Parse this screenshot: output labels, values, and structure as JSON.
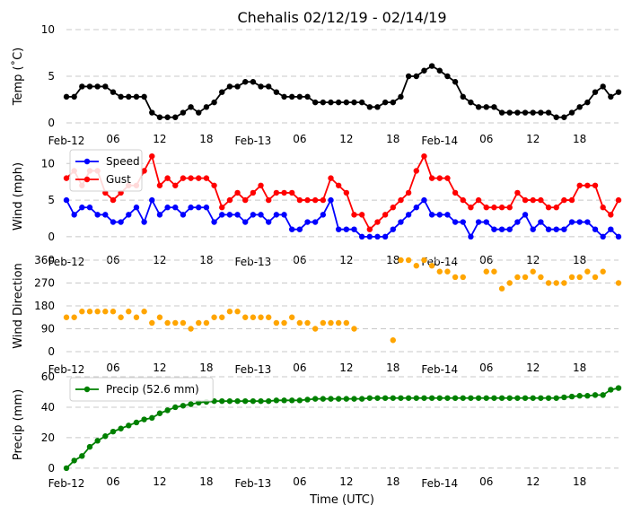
{
  "title": "Chehalis 02/12/19 - 02/14/19",
  "time_axis": {
    "xlabel": "Time (UTC)",
    "tick_labels": [
      "Feb-12",
      "06",
      "12",
      "18",
      "Feb-13",
      "06",
      "12",
      "18",
      "Feb-14",
      "06",
      "12",
      "18"
    ],
    "tick_hours": [
      0,
      6,
      12,
      18,
      24,
      30,
      36,
      42,
      48,
      54,
      60,
      66
    ],
    "xlim": [
      0,
      71
    ]
  },
  "colors": {
    "temp": "#000000",
    "speed": "#0000ff",
    "gust": "#ff0000",
    "direction": "#ffa500",
    "precip": "#008000"
  },
  "chart_data": [
    {
      "type": "line",
      "ylabel": "Temp (˚C)",
      "ylim": [
        0,
        10
      ],
      "yticks": [
        0,
        5,
        10
      ],
      "grid": true,
      "x": [
        0,
        1,
        2,
        3,
        4,
        5,
        6,
        7,
        8,
        9,
        10,
        11,
        12,
        13,
        14,
        15,
        16,
        17,
        18,
        19,
        20,
        21,
        22,
        23,
        24,
        25,
        26,
        27,
        28,
        29,
        30,
        31,
        32,
        33,
        34,
        35,
        36,
        37,
        38,
        39,
        40,
        41,
        42,
        43,
        44,
        45,
        46,
        47,
        48,
        49,
        50,
        51,
        52,
        53,
        54,
        55,
        56,
        57,
        58,
        59,
        60,
        61,
        62,
        63,
        64,
        65,
        66,
        67,
        68,
        69,
        70,
        71
      ],
      "series": [
        {
          "values": [
            2.8,
            2.8,
            3.9,
            3.9,
            3.9,
            3.9,
            3.3,
            2.8,
            2.8,
            2.8,
            2.8,
            1.1,
            0.6,
            0.6,
            0.6,
            1.1,
            1.7,
            1.1,
            1.7,
            2.2,
            3.3,
            3.9,
            3.9,
            4.4,
            4.4,
            3.9,
            3.9,
            3.3,
            2.8,
            2.8,
            2.8,
            2.8,
            2.2,
            2.2,
            2.2,
            2.2,
            2.2,
            2.2,
            2.2,
            1.7,
            1.7,
            2.2,
            2.2,
            2.8,
            5.0,
            5.0,
            5.6,
            6.1,
            5.6,
            5.0,
            4.4,
            2.8,
            2.2,
            1.7,
            1.7,
            1.7,
            1.1,
            1.1,
            1.1,
            1.1,
            1.1,
            1.1,
            1.1,
            0.6,
            0.6,
            1.1,
            1.7,
            2.2,
            3.3,
            3.9,
            2.8,
            3.3
          ]
        }
      ]
    },
    {
      "type": "line",
      "ylabel": "Wind (mph)",
      "ylim": [
        -1,
        12
      ],
      "yticks": [
        0,
        5,
        10
      ],
      "grid": true,
      "legend": "top-left",
      "x": [
        0,
        1,
        2,
        3,
        4,
        5,
        6,
        7,
        8,
        9,
        10,
        11,
        12,
        13,
        14,
        15,
        16,
        17,
        18,
        19,
        20,
        21,
        22,
        23,
        24,
        25,
        26,
        27,
        28,
        29,
        30,
        31,
        32,
        33,
        34,
        35,
        36,
        37,
        38,
        39,
        40,
        41,
        42,
        43,
        44,
        45,
        46,
        47,
        48,
        49,
        50,
        51,
        52,
        53,
        54,
        55,
        56,
        57,
        58,
        59,
        60,
        61,
        62,
        63,
        64,
        65,
        66,
        67,
        68,
        69,
        70,
        71
      ],
      "series": [
        {
          "name": "Speed",
          "values": [
            5,
            3,
            4,
            4,
            3,
            3,
            2,
            2,
            3,
            4,
            2,
            5,
            3,
            4,
            4,
            3,
            4,
            4,
            4,
            2,
            3,
            3,
            3,
            2,
            3,
            3,
            2,
            3,
            3,
            1,
            1,
            2,
            2,
            3,
            5,
            1,
            1,
            1,
            0,
            0,
            0,
            0,
            1,
            2,
            3,
            4,
            5,
            3,
            3,
            3,
            2,
            2,
            0,
            2,
            2,
            1,
            1,
            1,
            2,
            3,
            1,
            2,
            1,
            1,
            1,
            2,
            2,
            2,
            1,
            0,
            1,
            0
          ]
        },
        {
          "name": "Gust",
          "values": [
            8,
            9,
            7,
            9,
            9,
            6,
            5,
            6,
            7,
            7,
            9,
            11,
            7,
            8,
            7,
            8,
            8,
            8,
            8,
            7,
            4,
            5,
            6,
            5,
            6,
            7,
            5,
            6,
            6,
            6,
            5,
            5,
            5,
            5,
            8,
            7,
            6,
            3,
            3,
            1,
            2,
            3,
            4,
            5,
            6,
            9,
            11,
            8,
            8,
            8,
            6,
            5,
            4,
            5,
            4,
            4,
            4,
            4,
            6,
            5,
            5,
            5,
            4,
            4,
            5,
            5,
            7,
            7,
            7,
            4,
            3,
            5
          ]
        }
      ]
    },
    {
      "type": "scatter",
      "ylabel": "Wind Direction",
      "ylim": [
        0,
        360
      ],
      "yticks": [
        0,
        90,
        180,
        270,
        360
      ],
      "grid": true,
      "points": [
        [
          0,
          135
        ],
        [
          1,
          135
        ],
        [
          2,
          158
        ],
        [
          3,
          158
        ],
        [
          4,
          158
        ],
        [
          5,
          158
        ],
        [
          6,
          158
        ],
        [
          7,
          135
        ],
        [
          8,
          158
        ],
        [
          9,
          135
        ],
        [
          10,
          158
        ],
        [
          11,
          113
        ],
        [
          12,
          135
        ],
        [
          13,
          113
        ],
        [
          14,
          113
        ],
        [
          15,
          113
        ],
        [
          16,
          90
        ],
        [
          17,
          113
        ],
        [
          18,
          113
        ],
        [
          19,
          135
        ],
        [
          20,
          135
        ],
        [
          21,
          158
        ],
        [
          22,
          158
        ],
        [
          23,
          135
        ],
        [
          24,
          135
        ],
        [
          25,
          135
        ],
        [
          26,
          135
        ],
        [
          27,
          113
        ],
        [
          28,
          113
        ],
        [
          29,
          135
        ],
        [
          30,
          113
        ],
        [
          31,
          113
        ],
        [
          32,
          90
        ],
        [
          33,
          113
        ],
        [
          34,
          113
        ],
        [
          35,
          113
        ],
        [
          36,
          113
        ],
        [
          37,
          90
        ],
        [
          42,
          45
        ],
        [
          43,
          360
        ],
        [
          44,
          360
        ],
        [
          45,
          338
        ],
        [
          46,
          360
        ],
        [
          47,
          338
        ],
        [
          48,
          315
        ],
        [
          49,
          315
        ],
        [
          50,
          293
        ],
        [
          51,
          293
        ],
        [
          54,
          315
        ],
        [
          55,
          315
        ],
        [
          56,
          248
        ],
        [
          57,
          270
        ],
        [
          58,
          293
        ],
        [
          59,
          293
        ],
        [
          60,
          315
        ],
        [
          61,
          293
        ],
        [
          62,
          270
        ],
        [
          63,
          270
        ],
        [
          64,
          270
        ],
        [
          65,
          293
        ],
        [
          66,
          293
        ],
        [
          67,
          315
        ],
        [
          68,
          293
        ],
        [
          69,
          315
        ],
        [
          71,
          270
        ]
      ]
    },
    {
      "type": "line",
      "ylabel": "Precip (mm)",
      "ylim": [
        -3,
        60
      ],
      "yticks": [
        0,
        20,
        40,
        60
      ],
      "grid": true,
      "legend": "top-left",
      "x": [
        0,
        1,
        2,
        3,
        4,
        5,
        6,
        7,
        8,
        9,
        10,
        11,
        12,
        13,
        14,
        15,
        16,
        17,
        18,
        19,
        20,
        21,
        22,
        23,
        24,
        25,
        26,
        27,
        28,
        29,
        30,
        31,
        32,
        33,
        34,
        35,
        36,
        37,
        38,
        39,
        40,
        41,
        42,
        43,
        44,
        45,
        46,
        47,
        48,
        49,
        50,
        51,
        52,
        53,
        54,
        55,
        56,
        57,
        58,
        59,
        60,
        61,
        62,
        63,
        64,
        65,
        66,
        67,
        68,
        69,
        70,
        71
      ],
      "series": [
        {
          "name": "Precip (52.6 mm)",
          "values": [
            0,
            5,
            8,
            14,
            18,
            21,
            24,
            26,
            28,
            30,
            32,
            33,
            36,
            38,
            40,
            41,
            42,
            43,
            43.5,
            44,
            44,
            44,
            44,
            44,
            44,
            44,
            44,
            44.5,
            44.5,
            44.5,
            44.5,
            45,
            45.5,
            45.5,
            45.5,
            45.5,
            45.5,
            45.5,
            45.5,
            46,
            46,
            46,
            46,
            46,
            46,
            46,
            46,
            46,
            46,
            46,
            46,
            46,
            46,
            46,
            46,
            46,
            46,
            46,
            46,
            46,
            46,
            46,
            46,
            46,
            46.5,
            47,
            47.5,
            47.5,
            48,
            48,
            51.5,
            52.6
          ]
        }
      ]
    }
  ]
}
